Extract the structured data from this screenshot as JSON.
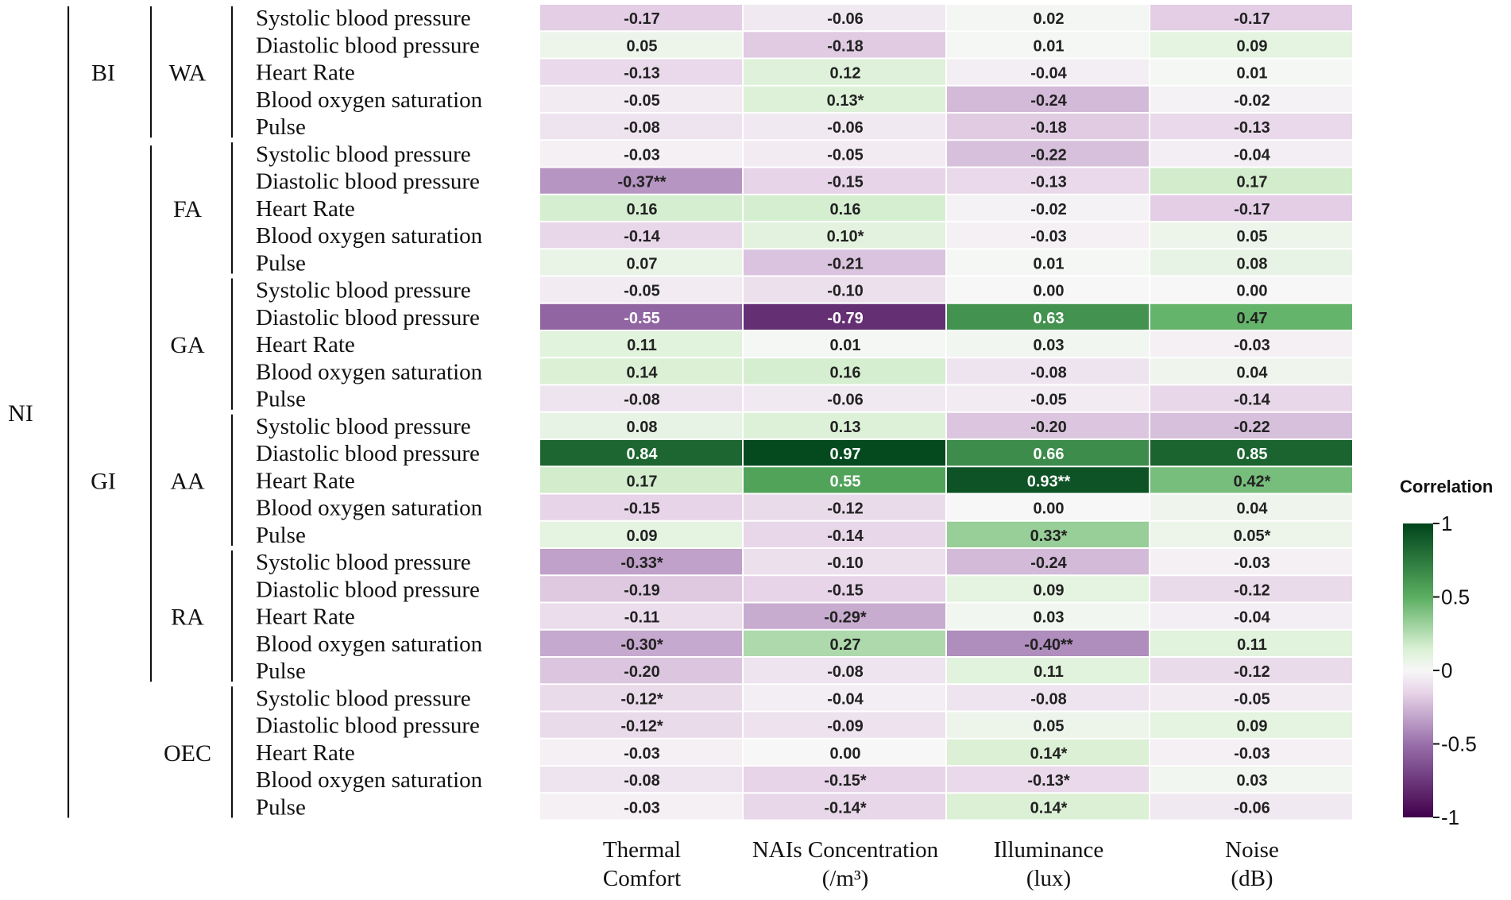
{
  "chart_data": {
    "type": "heatmap",
    "columns": [
      {
        "line1": "Thermal",
        "line2": "Comfort"
      },
      {
        "line1": "NAIs Concentration",
        "line2": "(/m³)"
      },
      {
        "line1": "Illuminance",
        "line2": "(lux)"
      },
      {
        "line1": "Noise",
        "line2": "(dB)"
      }
    ],
    "top_group": "NI",
    "mid_groups": [
      {
        "name": "BI",
        "blocks": 1
      },
      {
        "name": "GI",
        "blocks": 5
      }
    ],
    "measures": [
      "Systolic blood pressure",
      "Diastolic blood pressure",
      "Heart Rate",
      "Blood oxygen saturation",
      "Pulse"
    ],
    "blocks": [
      {
        "name": "WA",
        "rows": [
          {
            "label": "Systolic blood pressure",
            "values": [
              -0.17,
              -0.06,
              0.02,
              -0.17
            ],
            "texts": [
              "-0.17",
              "-0.06",
              "0.02",
              "-0.17"
            ]
          },
          {
            "label": "Diastolic blood pressure",
            "values": [
              0.05,
              -0.18,
              0.01,
              0.09
            ],
            "texts": [
              "0.05",
              "-0.18",
              "0.01",
              "0.09"
            ]
          },
          {
            "label": "Heart Rate",
            "values": [
              -0.13,
              0.12,
              -0.04,
              0.01
            ],
            "texts": [
              "-0.13",
              "0.12",
              "-0.04",
              "0.01"
            ]
          },
          {
            "label": "Blood oxygen saturation",
            "values": [
              -0.05,
              0.13,
              -0.24,
              -0.02
            ],
            "texts": [
              "-0.05",
              "0.13*",
              "-0.24",
              "-0.02"
            ]
          },
          {
            "label": "Pulse",
            "values": [
              -0.08,
              -0.06,
              -0.18,
              -0.13
            ],
            "texts": [
              "-0.08",
              "-0.06",
              "-0.18",
              "-0.13"
            ]
          }
        ]
      },
      {
        "name": "FA",
        "rows": [
          {
            "label": "Systolic blood pressure",
            "values": [
              -0.03,
              -0.05,
              -0.22,
              -0.04
            ],
            "texts": [
              "-0.03",
              "-0.05",
              "-0.22",
              "-0.04"
            ]
          },
          {
            "label": "Diastolic blood pressure",
            "values": [
              -0.37,
              -0.15,
              -0.13,
              0.17
            ],
            "texts": [
              "-0.37**",
              "-0.15",
              "-0.13",
              "0.17"
            ]
          },
          {
            "label": "Heart Rate",
            "values": [
              0.16,
              0.16,
              -0.02,
              -0.17
            ],
            "texts": [
              "0.16",
              "0.16",
              "-0.02",
              "-0.17"
            ]
          },
          {
            "label": "Blood oxygen saturation",
            "values": [
              -0.14,
              0.1,
              -0.03,
              0.05
            ],
            "texts": [
              "-0.14",
              "0.10*",
              "-0.03",
              "0.05"
            ]
          },
          {
            "label": "Pulse",
            "values": [
              0.07,
              -0.21,
              0.01,
              0.08
            ],
            "texts": [
              "0.07",
              "-0.21",
              "0.01",
              "0.08"
            ]
          }
        ]
      },
      {
        "name": "GA",
        "rows": [
          {
            "label": "Systolic blood pressure",
            "values": [
              -0.05,
              -0.1,
              0.0,
              0.0
            ],
            "texts": [
              "-0.05",
              "-0.10",
              "0.00",
              "0.00"
            ]
          },
          {
            "label": "Diastolic blood pressure",
            "values": [
              -0.55,
              -0.79,
              0.63,
              0.47
            ],
            "texts": [
              "-0.55",
              "-0.79",
              "0.63",
              "0.47"
            ]
          },
          {
            "label": "Heart Rate",
            "values": [
              0.11,
              0.01,
              0.03,
              -0.03
            ],
            "texts": [
              "0.11",
              "0.01",
              "0.03",
              "-0.03"
            ]
          },
          {
            "label": "Blood oxygen saturation",
            "values": [
              0.14,
              0.16,
              -0.08,
              0.04
            ],
            "texts": [
              "0.14",
              "0.16",
              "-0.08",
              "0.04"
            ]
          },
          {
            "label": "Pulse",
            "values": [
              -0.08,
              -0.06,
              -0.05,
              -0.14
            ],
            "texts": [
              "-0.08",
              "-0.06",
              "-0.05",
              "-0.14"
            ]
          }
        ]
      },
      {
        "name": "AA",
        "rows": [
          {
            "label": "Systolic blood pressure",
            "values": [
              0.08,
              0.13,
              -0.2,
              -0.22
            ],
            "texts": [
              "0.08",
              "0.13",
              "-0.20",
              "-0.22"
            ]
          },
          {
            "label": "Diastolic blood pressure",
            "values": [
              0.84,
              0.97,
              0.66,
              0.85
            ],
            "texts": [
              "0.84",
              "0.97",
              "0.66",
              "0.85"
            ]
          },
          {
            "label": "Heart Rate",
            "values": [
              0.17,
              0.55,
              0.93,
              0.42
            ],
            "texts": [
              "0.17",
              "0.55",
              "0.93**",
              "0.42*"
            ]
          },
          {
            "label": "Blood oxygen saturation",
            "values": [
              -0.15,
              -0.12,
              0.0,
              0.04
            ],
            "texts": [
              "-0.15",
              "-0.12",
              "0.00",
              "0.04"
            ]
          },
          {
            "label": "Pulse",
            "values": [
              0.09,
              -0.14,
              0.33,
              0.05
            ],
            "texts": [
              "0.09",
              "-0.14",
              "0.33*",
              "0.05*"
            ]
          }
        ]
      },
      {
        "name": "RA",
        "rows": [
          {
            "label": "Systolic blood pressure",
            "values": [
              -0.33,
              -0.1,
              -0.24,
              -0.03
            ],
            "texts": [
              "-0.33*",
              "-0.10",
              "-0.24",
              "-0.03"
            ]
          },
          {
            "label": "Diastolic blood pressure",
            "values": [
              -0.19,
              -0.15,
              0.09,
              -0.12
            ],
            "texts": [
              "-0.19",
              "-0.15",
              "0.09",
              "-0.12"
            ]
          },
          {
            "label": "Heart Rate",
            "values": [
              -0.11,
              -0.29,
              0.03,
              -0.04
            ],
            "texts": [
              "-0.11",
              "-0.29*",
              "0.03",
              "-0.04"
            ]
          },
          {
            "label": "Blood oxygen saturation",
            "values": [
              -0.3,
              0.27,
              -0.4,
              0.11
            ],
            "texts": [
              "-0.30*",
              "0.27",
              "-0.40**",
              "0.11"
            ]
          },
          {
            "label": "Pulse",
            "values": [
              -0.2,
              -0.08,
              0.11,
              -0.12
            ],
            "texts": [
              "-0.20",
              "-0.08",
              "0.11",
              "-0.12"
            ]
          }
        ]
      },
      {
        "name": "OEC",
        "rows": [
          {
            "label": "Systolic blood pressure",
            "values": [
              -0.12,
              -0.04,
              -0.08,
              -0.05
            ],
            "texts": [
              "-0.12*",
              "-0.04",
              "-0.08",
              "-0.05"
            ]
          },
          {
            "label": "Diastolic blood pressure",
            "values": [
              -0.12,
              -0.09,
              0.05,
              0.09
            ],
            "texts": [
              "-0.12*",
              "-0.09",
              "0.05",
              "0.09"
            ]
          },
          {
            "label": "Heart Rate",
            "values": [
              -0.03,
              0.0,
              0.14,
              -0.03
            ],
            "texts": [
              "-0.03",
              "0.00",
              "0.14*",
              "-0.03"
            ]
          },
          {
            "label": "Blood oxygen saturation",
            "values": [
              -0.08,
              -0.15,
              -0.13,
              0.03
            ],
            "texts": [
              "-0.08",
              "-0.15*",
              "-0.13*",
              "0.03"
            ]
          },
          {
            "label": "Pulse",
            "values": [
              -0.03,
              -0.14,
              0.14,
              -0.06
            ],
            "texts": [
              "-0.03",
              "-0.14*",
              "0.14*",
              "-0.06"
            ]
          }
        ]
      }
    ],
    "legend": {
      "title": "Correlation",
      "range": [
        -1,
        1
      ],
      "ticks": [
        1,
        0.5,
        0,
        -0.5,
        -1
      ],
      "tick_labels": [
        "1",
        "0.5",
        "0",
        "-0.5",
        "-1"
      ]
    },
    "colorscale": {
      "negative_end": "#40004b",
      "mid_negative": "#9970ab",
      "light_negative": "#e7d4e8",
      "center": "#f7f7f7",
      "light_positive": "#d9f0d3",
      "mid_positive": "#5aae61",
      "positive_end": "#00441b"
    }
  }
}
